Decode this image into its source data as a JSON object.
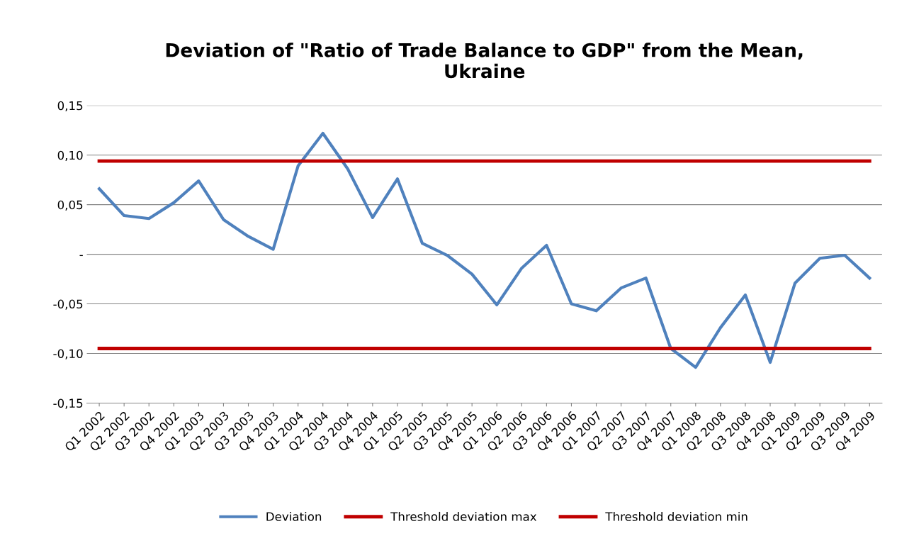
{
  "chart_data": {
    "type": "line",
    "title": "Deviation of \"Ratio of Trade Balance to GDP\" from the Mean,\nUkraine",
    "categories": [
      "Q1 2002",
      "Q2 2002",
      "Q3 2002",
      "Q4 2002",
      "Q1 2003",
      "Q2 2003",
      "Q3 2003",
      "Q4 2003",
      "Q1 2004",
      "Q2 2004",
      "Q3 2004",
      "Q4 2004",
      "Q1 2005",
      "Q2 2005",
      "Q3 2005",
      "Q4 2005",
      "Q1 2006",
      "Q2 2006",
      "Q3 2006",
      "Q4 2006",
      "Q1 2007",
      "Q2 2007",
      "Q3 2007",
      "Q4 2007",
      "Q1 2008",
      "Q2 2008",
      "Q3 2008",
      "Q4 2008",
      "Q1 2009",
      "Q2 2009",
      "Q3 2009",
      "Q4 2009"
    ],
    "series": [
      {
        "name": "Deviation",
        "color": "#4f81bd",
        "values": [
          0.066,
          0.039,
          0.036,
          0.052,
          0.074,
          0.035,
          0.018,
          0.005,
          0.089,
          0.122,
          0.086,
          0.037,
          0.076,
          0.011,
          -0.001,
          -0.02,
          -0.051,
          -0.014,
          0.009,
          -0.05,
          -0.057,
          -0.034,
          -0.024,
          -0.095,
          -0.114,
          -0.074,
          -0.041,
          -0.109,
          -0.029,
          -0.004,
          -0.001,
          -0.024
        ]
      },
      {
        "name": "Threshold deviation max",
        "color": "#c00000",
        "values": [
          0.094,
          0.094,
          0.094,
          0.094,
          0.094,
          0.094,
          0.094,
          0.094,
          0.094,
          0.094,
          0.094,
          0.094,
          0.094,
          0.094,
          0.094,
          0.094,
          0.094,
          0.094,
          0.094,
          0.094,
          0.094,
          0.094,
          0.094,
          0.094,
          0.094,
          0.094,
          0.094,
          0.094,
          0.094,
          0.094,
          0.094,
          0.094
        ]
      },
      {
        "name": "Threshold deviation min",
        "color": "#c00000",
        "values": [
          -0.095,
          -0.095,
          -0.095,
          -0.095,
          -0.095,
          -0.095,
          -0.095,
          -0.095,
          -0.095,
          -0.095,
          -0.095,
          -0.095,
          -0.095,
          -0.095,
          -0.095,
          -0.095,
          -0.095,
          -0.095,
          -0.095,
          -0.095,
          -0.095,
          -0.095,
          -0.095,
          -0.095,
          -0.095,
          -0.095,
          -0.095,
          -0.095,
          -0.095,
          -0.095,
          -0.095,
          -0.095
        ]
      }
    ],
    "ylim": [
      -0.15,
      0.15
    ],
    "yticks": [
      {
        "value": -0.15,
        "label": "-0,15"
      },
      {
        "value": -0.1,
        "label": "-0,10"
      },
      {
        "value": -0.05,
        "label": "-0,05"
      },
      {
        "value": 0,
        "label": "-"
      },
      {
        "value": 0.05,
        "label": "0,05"
      },
      {
        "value": 0.1,
        "label": "0,10"
      },
      {
        "value": 0.15,
        "label": "0,15"
      }
    ],
    "grid": "y",
    "legend": "bottom",
    "marker": "none",
    "line_style": "solid"
  }
}
